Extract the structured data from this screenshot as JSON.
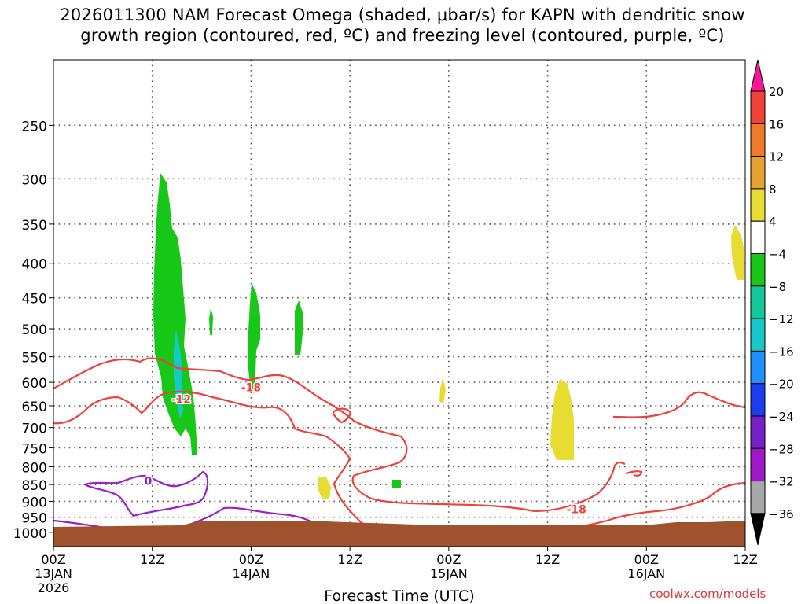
{
  "title": {
    "line1": "2026011300 NAM Forecast Omega (shaded, μbar/s) for KAPN with dendritic snow",
    "line2": "growth region (contoured, red, ºC) and freezing level (contoured, purple, ºC)"
  },
  "credit": "coolwx.com/models",
  "chart_data": {
    "type": "contour",
    "title": "2026011300 NAM Forecast Omega (shaded, μbar/s) for KAPN with dendritic snow growth region (contoured, red, ºC) and freezing level (contoured, purple, ºC)",
    "xlabel": "Forecast Time (UTC)",
    "ylabel": "",
    "xlim_hours": [
      0,
      84
    ],
    "ylim_hpa": [
      1050,
      200
    ],
    "y_ticks": [
      250,
      300,
      350,
      400,
      450,
      500,
      550,
      600,
      650,
      700,
      750,
      800,
      850,
      900,
      950,
      1000
    ],
    "x_ticks": [
      {
        "hour": 0,
        "lines": [
          "00Z",
          "13JAN",
          "2026"
        ]
      },
      {
        "hour": 12,
        "lines": [
          "12Z"
        ]
      },
      {
        "hour": 24,
        "lines": [
          "00Z",
          "14JAN"
        ]
      },
      {
        "hour": 36,
        "lines": [
          "12Z"
        ]
      },
      {
        "hour": 48,
        "lines": [
          "00Z",
          "15JAN"
        ]
      },
      {
        "hour": 60,
        "lines": [
          "12Z"
        ]
      },
      {
        "hour": 72,
        "lines": [
          "00Z",
          "16JAN"
        ]
      },
      {
        "hour": 84,
        "lines": [
          "12Z"
        ]
      }
    ],
    "colorbar": {
      "labels": [
        "20",
        "16",
        "12",
        "8",
        "4",
        "−4",
        "−8",
        "−12",
        "−16",
        "−20",
        "−24",
        "−28",
        "−32",
        "−36"
      ],
      "colors": [
        "#ff1493",
        "#f0403a",
        "#f07a2a",
        "#e8a030",
        "#e6dc32",
        "#ffffff",
        "#18c818",
        "#14c89a",
        "#18c8c8",
        "#1e90ff",
        "#1e3cf0",
        "#7820c8",
        "#a018c8",
        "#a8a8a8",
        "#000000"
      ]
    },
    "contour_labels": [
      {
        "text": "-18",
        "hour": 24.0,
        "hpa": 610,
        "color": "#f0403a"
      },
      {
        "text": "-12",
        "hour": 15.5,
        "hpa": 635,
        "color": "#f0403a"
      },
      {
        "text": "-18",
        "hour": 63.5,
        "hpa": 925,
        "color": "#f0403a"
      },
      {
        "text": "0",
        "hour": 11.5,
        "hpa": 840,
        "color": "#9a20c8"
      }
    ],
    "colors": {
      "ground": "#a0522d",
      "dgz": "#f0403a",
      "freezing": "#9a20c8"
    }
  }
}
